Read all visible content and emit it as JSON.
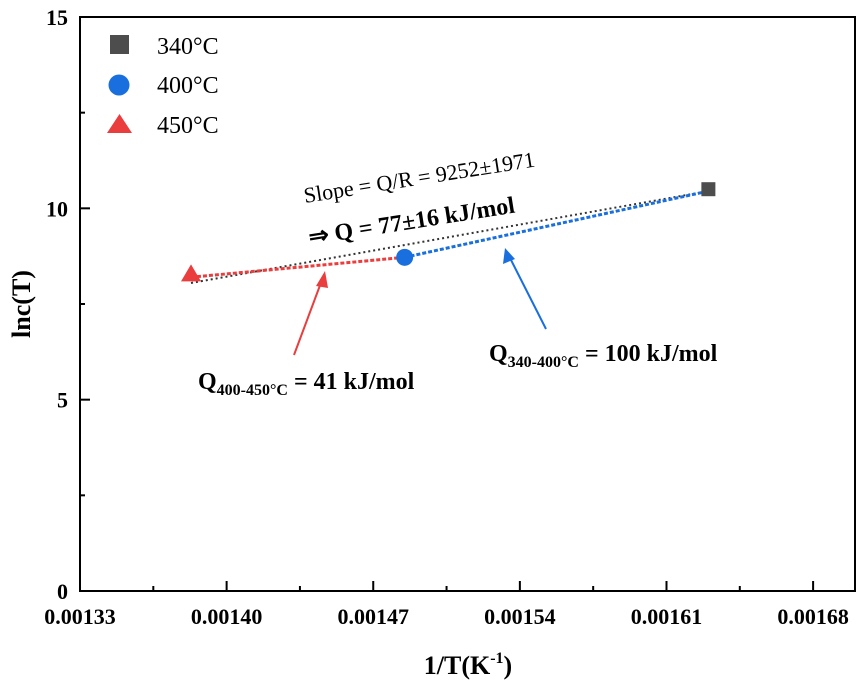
{
  "chart_data": {
    "type": "scatter",
    "title": "",
    "xlabel": "1/T(K",
    "xlabel_sup": "-1",
    "xlabel_end": ")",
    "ylabel": "lnc(T)",
    "xlim": [
      0.00133,
      0.0017
    ],
    "ylim": [
      0,
      15
    ],
    "x_ticks": [
      "0.00133",
      "0.00140",
      "0.00147",
      "0.00154",
      "0.00161",
      "0.00168"
    ],
    "x_tick_values": [
      0.00133,
      0.0014,
      0.00147,
      0.00154,
      0.00161,
      0.00168
    ],
    "y_ticks": [
      "0",
      "5",
      "10",
      "15"
    ],
    "y_tick_values": [
      0,
      5,
      10,
      15
    ],
    "legend_position": "top-left",
    "series": [
      {
        "name": "340°C",
        "marker": "square",
        "color": "#4d4d4d",
        "x": [
          0.00163
        ],
        "y": [
          10.5
        ]
      },
      {
        "name": "400°C",
        "marker": "circle",
        "color": "#1a6fdf",
        "x": [
          0.001485
        ],
        "y": [
          8.72
        ]
      },
      {
        "name": "450°C",
        "marker": "triangle",
        "color": "#ea3d3d",
        "x": [
          0.001383
        ],
        "y": [
          8.3
        ]
      }
    ],
    "fits": [
      {
        "name": "overall-fit",
        "color": "#333333",
        "x": [
          0.001383,
          0.00163
        ],
        "y": [
          8.05,
          10.45
        ]
      },
      {
        "name": "fit-400-450",
        "color": "#ea3d3d",
        "x": [
          0.001383,
          0.001485
        ],
        "y": [
          8.2,
          8.72
        ]
      },
      {
        "name": "fit-340-400",
        "color": "#1a6fdf",
        "x": [
          0.001485,
          0.00163
        ],
        "y": [
          8.72,
          10.45
        ]
      }
    ],
    "annotations": {
      "slope": "Slope = Q/R = 9252±1971",
      "q_total": "⇒ Q = 77±16 kJ/mol",
      "q_low_Q": "Q",
      "q_low_sub": "400-450°C",
      "q_low_val": " = 41 kJ/mol",
      "q_high_Q": "Q",
      "q_high_sub": "340-400°C",
      "q_high_val": " = 100 kJ/mol"
    }
  }
}
